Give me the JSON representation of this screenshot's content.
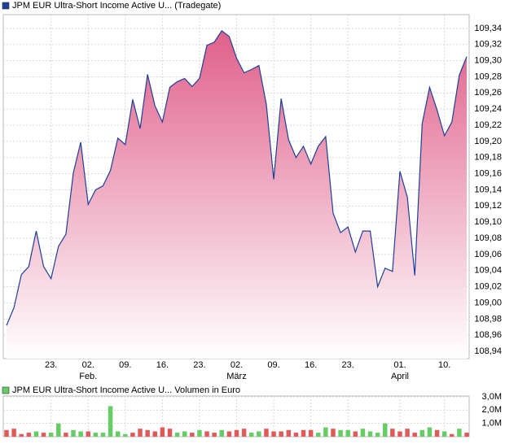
{
  "chart_data": [
    {
      "type": "area",
      "title": "JPM EUR Ultra-Short Income Active U... (Tradegate)",
      "legend_color": "#1f3f99",
      "categories": [
        null,
        null,
        null,
        null,
        null,
        null,
        "23.",
        null,
        null,
        null,
        null,
        "02.",
        null,
        null,
        null,
        null,
        "09.",
        null,
        null,
        null,
        null,
        "16.",
        null,
        null,
        null,
        null,
        "23.",
        null,
        null,
        null,
        null,
        "02.",
        null,
        null,
        null,
        null,
        "09.",
        null,
        null,
        null,
        null,
        "16.",
        null,
        null,
        null,
        null,
        "23.",
        null,
        null,
        null,
        null,
        null,
        null,
        "01.",
        null,
        null,
        null,
        null,
        null,
        "10.",
        null,
        null,
        null
      ],
      "category_months": [
        null,
        null,
        null,
        null,
        null,
        null,
        null,
        null,
        null,
        null,
        null,
        "Feb.",
        null,
        null,
        null,
        null,
        null,
        null,
        null,
        null,
        null,
        null,
        null,
        null,
        null,
        null,
        null,
        null,
        null,
        null,
        null,
        "März",
        null,
        null,
        null,
        null,
        null,
        null,
        null,
        null,
        null,
        null,
        null,
        null,
        null,
        null,
        null,
        null,
        null,
        null,
        null,
        null,
        null,
        "April",
        null,
        null,
        null,
        null,
        null,
        null,
        null,
        null,
        null
      ],
      "series": [
        {
          "name": "JPM EUR Ultra-Short Income Active U... (Tradegate)",
          "color": "#1f3f99",
          "fill": "#e0608a",
          "values": [
            108.972,
            108.994,
            109.035,
            109.045,
            109.089,
            109.045,
            109.03,
            109.07,
            109.085,
            109.161,
            109.199,
            109.122,
            109.14,
            109.145,
            109.164,
            109.204,
            109.196,
            109.252,
            109.216,
            109.283,
            109.244,
            109.224,
            109.267,
            109.274,
            109.278,
            109.268,
            109.278,
            109.319,
            109.323,
            109.337,
            109.33,
            109.303,
            109.285,
            109.289,
            109.294,
            109.246,
            109.153,
            109.253,
            109.202,
            109.18,
            109.194,
            109.172,
            109.194,
            109.206,
            109.111,
            109.087,
            109.094,
            109.063,
            109.089,
            109.089,
            109.02,
            109.043,
            109.039,
            109.163,
            109.131,
            109.034,
            109.222,
            109.267,
            109.239,
            109.207,
            109.224,
            109.282,
            109.305
          ]
        }
      ],
      "ylim": [
        108.931,
        109.357
      ],
      "yticks": [
        {
          "value": 108.94,
          "label": "108,94"
        },
        {
          "value": 108.96,
          "label": "108,96"
        },
        {
          "value": 108.98,
          "label": "108,98"
        },
        {
          "value": 109.0,
          "label": "109,00"
        },
        {
          "value": 109.02,
          "label": "109,02"
        },
        {
          "value": 109.04,
          "label": "109,04"
        },
        {
          "value": 109.06,
          "label": "109,06"
        },
        {
          "value": 109.08,
          "label": "109,08"
        },
        {
          "value": 109.1,
          "label": "109,10"
        },
        {
          "value": 109.12,
          "label": "109,12"
        },
        {
          "value": 109.14,
          "label": "109,14"
        },
        {
          "value": 109.16,
          "label": "109,16"
        },
        {
          "value": 109.18,
          "label": "109,18"
        },
        {
          "value": 109.2,
          "label": "109,20"
        },
        {
          "value": 109.22,
          "label": "109,22"
        },
        {
          "value": 109.24,
          "label": "109,24"
        },
        {
          "value": 109.26,
          "label": "109,26"
        },
        {
          "value": 109.28,
          "label": "109,28"
        },
        {
          "value": 109.3,
          "label": "109,30"
        },
        {
          "value": 109.32,
          "label": "109,32"
        },
        {
          "value": 109.34,
          "label": "109,34"
        }
      ],
      "grid": true
    },
    {
      "type": "bar",
      "title": "JPM EUR Ultra-Short Income Active U... Volumen in Euro",
      "legend_color": "#66cc66",
      "series": [
        {
          "name": "Volumen in Euro",
          "values": [
            0.5,
            0.6,
            0.2,
            0.3,
            0.4,
            0.3,
            0.3,
            1.0,
            0.3,
            0.5,
            0.4,
            0.4,
            0.3,
            0.3,
            2.3,
            0.4,
            0.2,
            0.3,
            0.6,
            0.5,
            0.4,
            0.7,
            0.6,
            0.3,
            0.4,
            0.3,
            0.5,
            0.4,
            0.3,
            0.5,
            0.4,
            0.5,
            0.6,
            0.3,
            0.4,
            0.6,
            0.4,
            0.4,
            0.5,
            0.3,
            0.5,
            0.5,
            0.3,
            0.7,
            0.6,
            0.5,
            0.5,
            0.4,
            0.6,
            0.4,
            0.3,
            1.0,
            0.6,
            0.4,
            0.6,
            0.3,
            0.5,
            0.7,
            0.5,
            0.4,
            0.2,
            0.6,
            0.3
          ],
          "colors": [
            "#e05a5a",
            "#e05a5a",
            "#e05a5a",
            "#e05a5a",
            "#66cc66",
            "#e05a5a",
            "#66cc66",
            "#66cc66",
            "#e05a5a",
            "#66cc66",
            "#66cc66",
            "#e05a5a",
            "#66cc66",
            "#66cc66",
            "#66cc66",
            "#66cc66",
            "#66cc66",
            "#e05a5a",
            "#e05a5a",
            "#e05a5a",
            "#e05a5a",
            "#e05a5a",
            "#e05a5a",
            "#66cc66",
            "#66cc66",
            "#e05a5a",
            "#66cc66",
            "#e05a5a",
            "#e05a5a",
            "#66cc66",
            "#e05a5a",
            "#e05a5a",
            "#e05a5a",
            "#66cc66",
            "#66cc66",
            "#e05a5a",
            "#e05a5a",
            "#e05a5a",
            "#e05a5a",
            "#e05a5a",
            "#e05a5a",
            "#e05a5a",
            "#66cc66",
            "#66cc66",
            "#e05a5a",
            "#66cc66",
            "#66cc66",
            "#e05a5a",
            "#66cc66",
            "#66cc66",
            "#66cc66",
            "#66cc66",
            "#e05a5a",
            "#e05a5a",
            "#e05a5a",
            "#e05a5a",
            "#66cc66",
            "#66cc66",
            "#e05a5a",
            "#66cc66",
            "#e05a5a",
            "#66cc66",
            "#e05a5a"
          ]
        }
      ],
      "ylim": [
        0,
        3.06
      ],
      "yticks": [
        {
          "value": 1,
          "label": "1,0M"
        },
        {
          "value": 2,
          "label": "2,0M"
        },
        {
          "value": 3,
          "label": "3,0M"
        }
      ],
      "grid": true
    }
  ]
}
